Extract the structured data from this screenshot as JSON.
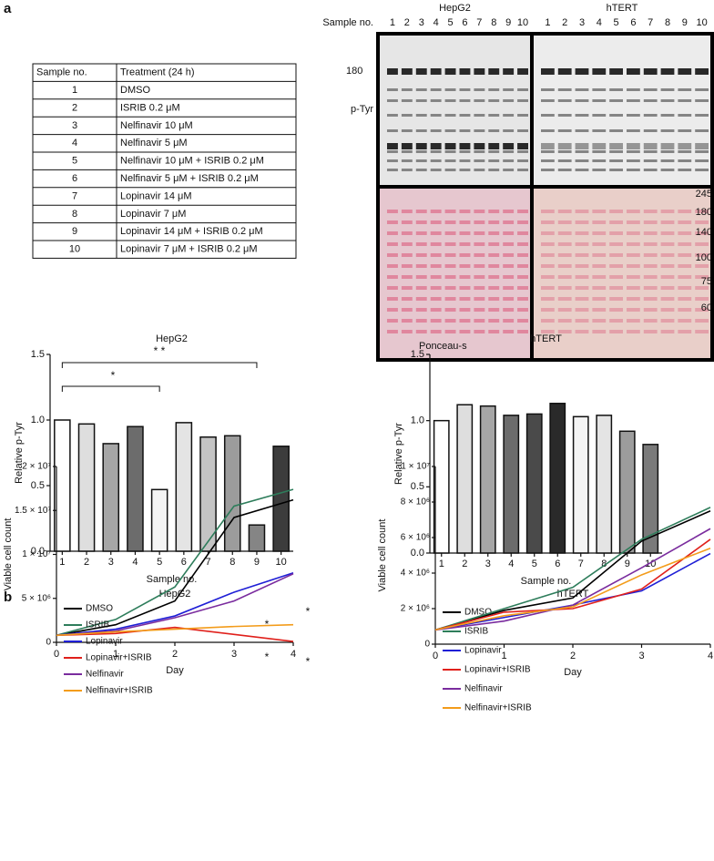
{
  "panels": [
    "a",
    "b"
  ],
  "table": {
    "header": [
      "Sample no.",
      "Treatment (24 h)"
    ],
    "rows": [
      [
        "1",
        "DMSO"
      ],
      [
        "2",
        "ISRIB 0.2 μM"
      ],
      [
        "3",
        "Nelfinavir 10 μM"
      ],
      [
        "4",
        "Nelfinavir 5 μM"
      ],
      [
        "5",
        "Nelfinavir 10 μM + ISRIB 0.2 μM"
      ],
      [
        "6",
        "Nelfinavir 5 μM + ISRIB 0.2 μM"
      ],
      [
        "7",
        "Lopinavir 14 μM"
      ],
      [
        "8",
        "Lopinavir 7 μM"
      ],
      [
        "9",
        "Lopinavir 14 μM + ISRIB 0.2 μM"
      ],
      [
        "10",
        "Lopinavir 7 μM + ISRIB 0.2 μM"
      ]
    ]
  },
  "blot": {
    "cell_lines": [
      "HepG2",
      "hTERT"
    ],
    "sample_label": "Sample no.",
    "lanes": [
      "1",
      "2",
      "3",
      "4",
      "5",
      "6",
      "7",
      "8",
      "9",
      "10"
    ],
    "band_label": "180",
    "antibody": "p-Tyr",
    "markers": [
      "245",
      "180",
      "140",
      "100",
      "75",
      "60"
    ],
    "stain": "Ponceau-s"
  },
  "chart_data": [
    {
      "type": "bar",
      "title": "HepG2",
      "x_label": "Sample no.",
      "y_label": "Relative p-Tyr",
      "categories": [
        "1",
        "2",
        "3",
        "4",
        "5",
        "6",
        "7",
        "8",
        "9",
        "10"
      ],
      "values": [
        1.0,
        0.97,
        0.82,
        0.95,
        0.47,
        0.98,
        0.87,
        0.88,
        0.2,
        0.8
      ],
      "colors": [
        "#ffffff",
        "#dedede",
        "#a6a6a6",
        "#6c6c6c",
        "#f4f4f4",
        "#e4e4e4",
        "#c4c4c4",
        "#9c9c9c",
        "#858585",
        "#3c3c3c"
      ],
      "ylim": [
        0,
        1.5
      ],
      "yticks": [
        {
          "value": 0,
          "label": "0.0"
        },
        {
          "value": 0.5,
          "label": "0.5"
        },
        {
          "value": 1,
          "label": "1.0"
        },
        {
          "value": 1.5,
          "label": "1.5"
        }
      ],
      "annotations": [
        "* *",
        "*"
      ]
    },
    {
      "type": "bar",
      "title": "hTERT",
      "x_label": "Sample no.",
      "y_label": "Relative p-Tyr",
      "categories": [
        "1",
        "2",
        "3",
        "4",
        "5",
        "6",
        "7",
        "8",
        "9",
        "10"
      ],
      "values": [
        1.0,
        1.12,
        1.11,
        1.04,
        1.05,
        1.13,
        1.03,
        1.04,
        0.92,
        0.82
      ],
      "colors": [
        "#ffffff",
        "#dedede",
        "#a6a6a6",
        "#6c6c6c",
        "#4a4a4a",
        "#2a2a2a",
        "#f4f4f4",
        "#e4e4e4",
        "#9c9c9c",
        "#7a7a7a"
      ],
      "ylim": [
        0,
        1.5
      ],
      "yticks": [
        {
          "value": 0,
          "label": "0.0"
        },
        {
          "value": 0.5,
          "label": "0.5"
        },
        {
          "value": 1,
          "label": "1.0"
        },
        {
          "value": 1.5,
          "label": "1.5"
        }
      ]
    },
    {
      "type": "line",
      "title": "HepG2",
      "x_label": "Day",
      "y_label": "Viable cell count",
      "x": [
        0,
        1,
        2,
        3,
        4
      ],
      "xlim": [
        0,
        4
      ],
      "xticks": [
        0,
        1,
        2,
        3,
        4
      ],
      "ylim": [
        0,
        20000000
      ],
      "yticks": [
        0,
        {
          "value": 5000000,
          "label": "5 × 10⁶"
        },
        {
          "value": 10000000,
          "label": "1 × 10⁷"
        },
        {
          "value": 15000000,
          "label": "1.5 × 10⁷"
        },
        {
          "value": 20000000,
          "label": "2 × 10⁷"
        }
      ],
      "series": [
        {
          "name": "DMSO",
          "color": "#000000",
          "values": [
            800000,
            2000000,
            4700000,
            14200000,
            16200000
          ]
        },
        {
          "name": "ISRIB",
          "color": "#2e7d5b",
          "values": [
            800000,
            2600000,
            6300000,
            15500000,
            17400000
          ]
        },
        {
          "name": "Lopinavir",
          "color": "#1f1fd6",
          "values": [
            800000,
            1500000,
            3000000,
            5700000,
            7900000
          ]
        },
        {
          "name": "Lopinavir+ISRIB",
          "color": "#e0201b",
          "values": [
            800000,
            1000000,
            1700000,
            900000,
            100000
          ]
        },
        {
          "name": "Nelfinavir",
          "color": "#7a2c9e",
          "values": [
            800000,
            1300000,
            2800000,
            4700000,
            7800000
          ]
        },
        {
          "name": "Nelfinavir+ISRIB",
          "color": "#f39c1b",
          "values": [
            800000,
            1200000,
            1500000,
            1800000,
            2000000
          ]
        }
      ],
      "annotations": [
        "*",
        "*",
        "*",
        "*"
      ]
    },
    {
      "type": "line",
      "title": "hTERT",
      "x_label": "Day",
      "y_label": "Viable cell count",
      "x": [
        0,
        1,
        2,
        3,
        4
      ],
      "xlim": [
        0,
        4
      ],
      "xticks": [
        0,
        1,
        2,
        3,
        4
      ],
      "ylim": [
        0,
        10000000
      ],
      "yticks": [
        0,
        {
          "value": 2000000,
          "label": "2 × 10⁶"
        },
        {
          "value": 4000000,
          "label": "4 × 10⁶"
        },
        {
          "value": 6000000,
          "label": "6 × 10⁶"
        },
        {
          "value": 8000000,
          "label": "8 × 10⁶"
        },
        {
          "value": 10000000,
          "label": "1 × 10⁷"
        }
      ],
      "series": [
        {
          "name": "DMSO",
          "color": "#000000",
          "values": [
            800000,
            1900000,
            2600000,
            5800000,
            7500000
          ]
        },
        {
          "name": "ISRIB",
          "color": "#2e7d5b",
          "values": [
            800000,
            2000000,
            3200000,
            5900000,
            7700000
          ]
        },
        {
          "name": "Lopinavir",
          "color": "#1f1fd6",
          "values": [
            800000,
            1500000,
            2200000,
            3000000,
            5100000
          ]
        },
        {
          "name": "Lopinavir+ISRIB",
          "color": "#e0201b",
          "values": [
            800000,
            1800000,
            2000000,
            3100000,
            5900000
          ]
        },
        {
          "name": "Nelfinavir",
          "color": "#7a2c9e",
          "values": [
            800000,
            1300000,
            2200000,
            4300000,
            6500000
          ]
        },
        {
          "name": "Nelfinavir+ISRIB",
          "color": "#f39c1b",
          "values": [
            800000,
            1600000,
            2100000,
            3900000,
            5400000
          ]
        }
      ]
    }
  ]
}
